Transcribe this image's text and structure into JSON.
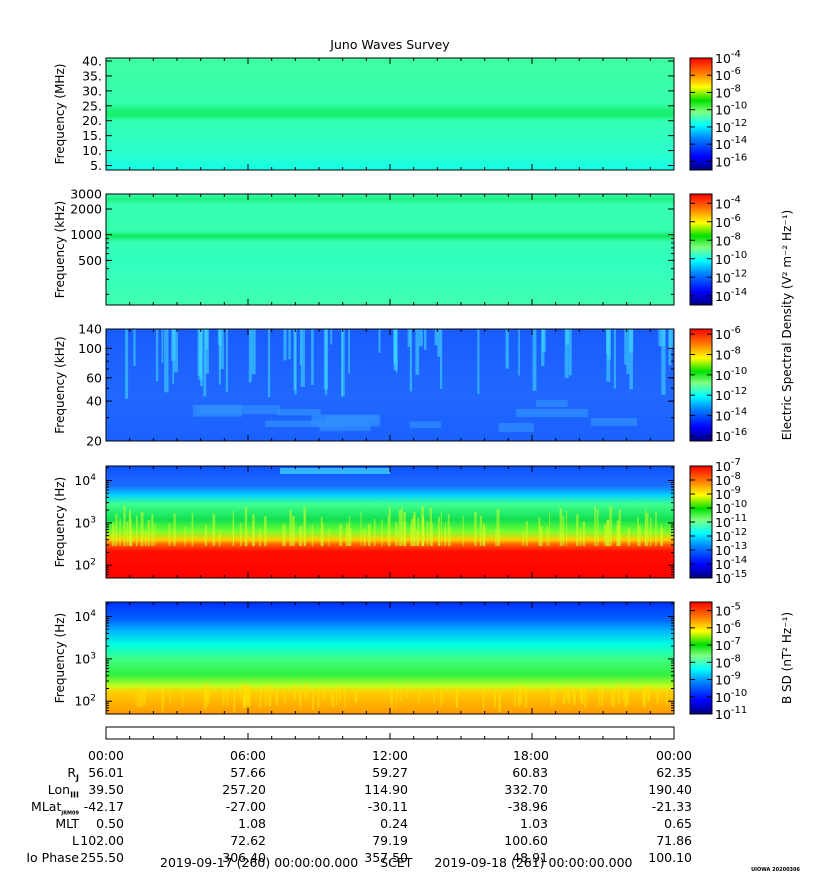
{
  "chart_data": {
    "type": "heatmap",
    "title": "Juno Waves Survey",
    "watermark": "UIOWA 20200306",
    "colormap": [
      "#00007f",
      "#0000ff",
      "#0080ff",
      "#00ffff",
      "#80ff80",
      "#00e000",
      "#ffff00",
      "#ff8000",
      "#ff0000"
    ],
    "panels": [
      {
        "id": "waves-hfr-high",
        "ylabel": "Frequency (MHz)",
        "yscale": "linear",
        "ylim": [
          3.5,
          41
        ],
        "yticks": [
          5,
          10,
          15,
          20,
          25,
          30,
          35,
          40
        ],
        "yticklabels": [
          "5.",
          "10.",
          "15.",
          "20.",
          "25.",
          "30.",
          "35.",
          "40."
        ],
        "colorbar": {
          "ticks": [
            "10^-4",
            "10^-6",
            "10^-8",
            "10^-10",
            "10^-12",
            "10^-14",
            "10^-16"
          ],
          "base": "10",
          "exponents": [
            "-4",
            "-6",
            "-8",
            "-10",
            "-12",
            "-14",
            "-16"
          ],
          "range_exp": [
            -17,
            -4
          ]
        },
        "shared_cbar_label": false
      },
      {
        "id": "waves-hfr-low",
        "ylabel": "Frequency (kHz)",
        "yscale": "log",
        "ylim": [
          150,
          3000
        ],
        "yticks": [
          500,
          1000,
          2000,
          3000
        ],
        "yticklabels": [
          "500",
          "1000",
          "2000",
          "3000"
        ],
        "colorbar": {
          "base": "10",
          "exponents": [
            "-4",
            "-6",
            "-8",
            "-10",
            "-12",
            "-14"
          ],
          "range_exp": [
            -15,
            -3
          ]
        }
      },
      {
        "id": "waves-lfr-high",
        "ylabel": "Frequency (kHz)",
        "yscale": "log",
        "ylim": [
          20,
          140
        ],
        "yticks": [
          20,
          40,
          60,
          100,
          140
        ],
        "yticklabels": [
          "20",
          "40",
          "60",
          "100",
          "140"
        ],
        "colorbar": {
          "base": "10",
          "exponents": [
            "-6",
            "-8",
            "-10",
            "-12",
            "-14",
            "-16"
          ],
          "range_exp": [
            -16.5,
            -5.5
          ]
        }
      },
      {
        "id": "waves-lfr-e",
        "ylabel": "Frequency (Hz)",
        "yscale": "log",
        "ylim": [
          50,
          22000
        ],
        "yticks": [
          100,
          1000,
          10000
        ],
        "ytick_exponents": [
          "2",
          "3",
          "4"
        ],
        "colorbar": {
          "base": "10",
          "exponents": [
            "-7",
            "-8",
            "-9",
            "-10",
            "-11",
            "-12",
            "-13",
            "-14",
            "-15"
          ],
          "range_exp": [
            -15,
            -7
          ]
        }
      },
      {
        "id": "waves-lfr-b",
        "ylabel": "Frequency (Hz)",
        "yscale": "log",
        "ylim": [
          50,
          22000
        ],
        "yticks": [
          100,
          1000,
          10000
        ],
        "ytick_exponents": [
          "2",
          "3",
          "4"
        ],
        "colorbar": {
          "base": "10",
          "exponents": [
            "-5",
            "-6",
            "-7",
            "-8",
            "-9",
            "-10",
            "-11"
          ],
          "range_exp": [
            -11,
            -4.5
          ]
        }
      }
    ],
    "e_cbar_label": "Electric Spectral Density (V² m⁻² Hz⁻¹)",
    "b_cbar_label": "B SD (nT² Hz⁻¹)",
    "xticks": [
      "00:00",
      "06:00",
      "12:00",
      "18:00",
      "00:00"
    ],
    "ephemeris": [
      {
        "label": "R",
        "sub": "J",
        "values": [
          "56.01",
          "57.66",
          "59.27",
          "60.83",
          "62.35"
        ]
      },
      {
        "label": "Lon",
        "sub": "III",
        "values": [
          "39.50",
          "257.20",
          "114.90",
          "332.70",
          "190.40"
        ]
      },
      {
        "label": "MLat",
        "sub": "JRM09",
        "values": [
          "-42.17",
          "-27.00",
          "-30.11",
          "-38.96",
          "-21.33"
        ]
      },
      {
        "label": "MLT",
        "sub": "",
        "values": [
          "0.50",
          "1.08",
          "0.24",
          "1.03",
          "0.65"
        ]
      },
      {
        "label": "L",
        "sub": "",
        "values": [
          "102.00",
          "72.62",
          "79.19",
          "100.60",
          "71.86"
        ]
      },
      {
        "label": "Io Phase",
        "sub": "",
        "values": [
          "255.50",
          "306.40",
          "357.50",
          "48.91",
          "100.10"
        ]
      }
    ],
    "time_start": "2019-09-17 (260) 00:00:00.000",
    "time_label": "SCET",
    "time_end": "2019-09-18 (261) 00:00:00.000"
  }
}
